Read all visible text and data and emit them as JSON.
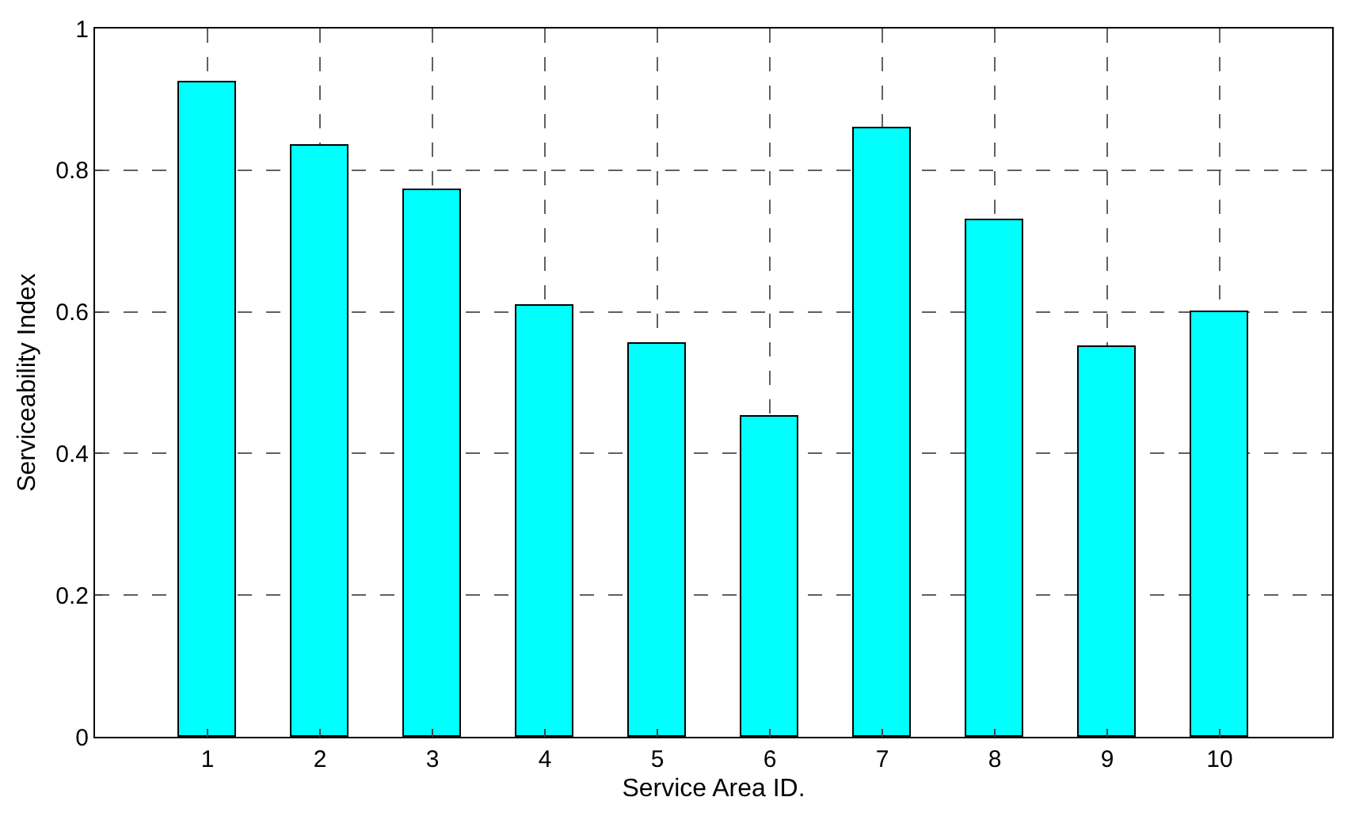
{
  "chart_data": {
    "type": "bar",
    "xlabel": "Service Area ID.",
    "ylabel": "Serviceability Index",
    "x": [
      1,
      2,
      3,
      4,
      5,
      6,
      7,
      8,
      9,
      10
    ],
    "series": [
      {
        "color": "#00ffff",
        "values": [
          0.925,
          0.834,
          0.772,
          0.608,
          0.555,
          0.451,
          0.859,
          0.73,
          0.55,
          0.6
        ]
      }
    ],
    "xlim": [
      0,
      11
    ],
    "xticks": [
      1,
      2,
      3,
      4,
      5,
      6,
      7,
      8,
      9,
      10
    ],
    "ylim": [
      0,
      1
    ],
    "yticks": [
      0,
      0.2,
      0.4,
      0.6,
      0.8,
      1
    ],
    "grid": true
  }
}
